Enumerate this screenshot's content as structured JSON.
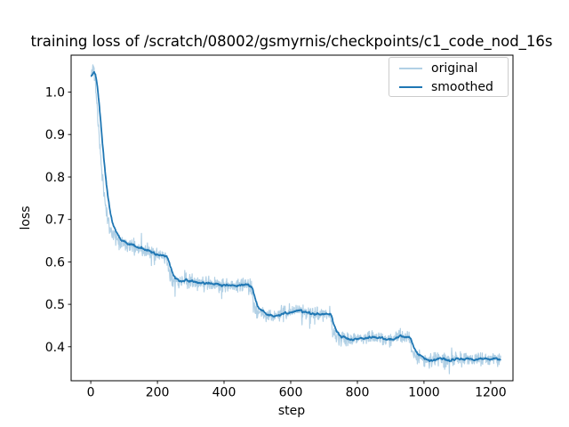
{
  "chart_data": {
    "type": "line",
    "title": "training loss of /scratch/08002/gsmyrnis/checkpoints/c1_code_nod_16s",
    "xlabel": "step",
    "ylabel": "loss",
    "xlim": [
      -59,
      1267
    ],
    "ylim": [
      0.32,
      1.087
    ],
    "xticks": [
      0,
      200,
      400,
      600,
      800,
      1000,
      1200
    ],
    "yticks": [
      0.4,
      0.5,
      0.6,
      0.7,
      0.8,
      0.9,
      1.0
    ],
    "x_range": [
      0,
      1230
    ],
    "grid": false,
    "background": "#ffffff",
    "spine_color": "#000000",
    "base_keypoints": [
      [
        0,
        1.035
      ],
      [
        3,
        1.048
      ],
      [
        6,
        1.055
      ],
      [
        10,
        1.052
      ],
      [
        14,
        1.02
      ],
      [
        18,
        0.975
      ],
      [
        22,
        0.93
      ],
      [
        26,
        0.885
      ],
      [
        30,
        0.845
      ],
      [
        35,
        0.8
      ],
      [
        40,
        0.762
      ],
      [
        45,
        0.732
      ],
      [
        50,
        0.705
      ],
      [
        56,
        0.685
      ],
      [
        62,
        0.672
      ],
      [
        70,
        0.662
      ],
      [
        80,
        0.655
      ],
      [
        95,
        0.649
      ],
      [
        110,
        0.643
      ],
      [
        130,
        0.636
      ],
      [
        150,
        0.63
      ],
      [
        170,
        0.624
      ],
      [
        190,
        0.618
      ],
      [
        210,
        0.612
      ],
      [
        228,
        0.608
      ],
      [
        232,
        0.59
      ],
      [
        236,
        0.572
      ],
      [
        240,
        0.563
      ],
      [
        248,
        0.558
      ],
      [
        260,
        0.556
      ],
      [
        280,
        0.554
      ],
      [
        300,
        0.552
      ],
      [
        330,
        0.55
      ],
      [
        360,
        0.548
      ],
      [
        390,
        0.547
      ],
      [
        420,
        0.545
      ],
      [
        450,
        0.545
      ],
      [
        470,
        0.543
      ],
      [
        482,
        0.542
      ],
      [
        486,
        0.52
      ],
      [
        490,
        0.5
      ],
      [
        494,
        0.487
      ],
      [
        500,
        0.482
      ],
      [
        510,
        0.478
      ],
      [
        525,
        0.475
      ],
      [
        545,
        0.474
      ],
      [
        565,
        0.477
      ],
      [
        585,
        0.48
      ],
      [
        605,
        0.483
      ],
      [
        618,
        0.487
      ],
      [
        632,
        0.483
      ],
      [
        648,
        0.48
      ],
      [
        665,
        0.481
      ],
      [
        685,
        0.48
      ],
      [
        705,
        0.478
      ],
      [
        718,
        0.477
      ],
      [
        722,
        0.46
      ],
      [
        726,
        0.44
      ],
      [
        730,
        0.428
      ],
      [
        736,
        0.423
      ],
      [
        745,
        0.42
      ],
      [
        760,
        0.417
      ],
      [
        775,
        0.416
      ],
      [
        790,
        0.418
      ],
      [
        805,
        0.421
      ],
      [
        820,
        0.423
      ],
      [
        838,
        0.422
      ],
      [
        856,
        0.42
      ],
      [
        874,
        0.419
      ],
      [
        892,
        0.418
      ],
      [
        910,
        0.42
      ],
      [
        928,
        0.422
      ],
      [
        944,
        0.423
      ],
      [
        956,
        0.421
      ],
      [
        960,
        0.405
      ],
      [
        964,
        0.39
      ],
      [
        968,
        0.381
      ],
      [
        974,
        0.377
      ],
      [
        982,
        0.375
      ],
      [
        995,
        0.373
      ],
      [
        1010,
        0.371
      ],
      [
        1025,
        0.369
      ],
      [
        1045,
        0.371
      ],
      [
        1065,
        0.372
      ],
      [
        1085,
        0.37
      ],
      [
        1105,
        0.369
      ],
      [
        1125,
        0.371
      ],
      [
        1145,
        0.372
      ],
      [
        1165,
        0.37
      ],
      [
        1185,
        0.369
      ],
      [
        1208,
        0.371
      ],
      [
        1230,
        0.37
      ]
    ],
    "series": [
      {
        "name": "original",
        "color": "#1f77b4",
        "alpha": 0.35,
        "line_width": 1.2,
        "derivation": "base_keypoints interpolated per step plus noise"
      },
      {
        "name": "smoothed",
        "color": "#1f77b4",
        "alpha": 1.0,
        "line_width": 1.8,
        "derivation": "exponential moving average of original"
      }
    ],
    "noise": {
      "seed": 11,
      "sigma": 0.008,
      "spike_prob": 0.025,
      "spike_min": 0.014,
      "spike_max": 0.034,
      "down_bias": 0.65
    },
    "smoothing": {
      "method": "ema",
      "alpha": 0.1
    },
    "legend": {
      "location": "upper right",
      "border_color": "#cccccc",
      "entries": [
        {
          "label": "original",
          "color": "#1f77b4",
          "alpha": 0.35
        },
        {
          "label": "smoothed",
          "color": "#1f77b4",
          "alpha": 1.0
        }
      ]
    }
  }
}
